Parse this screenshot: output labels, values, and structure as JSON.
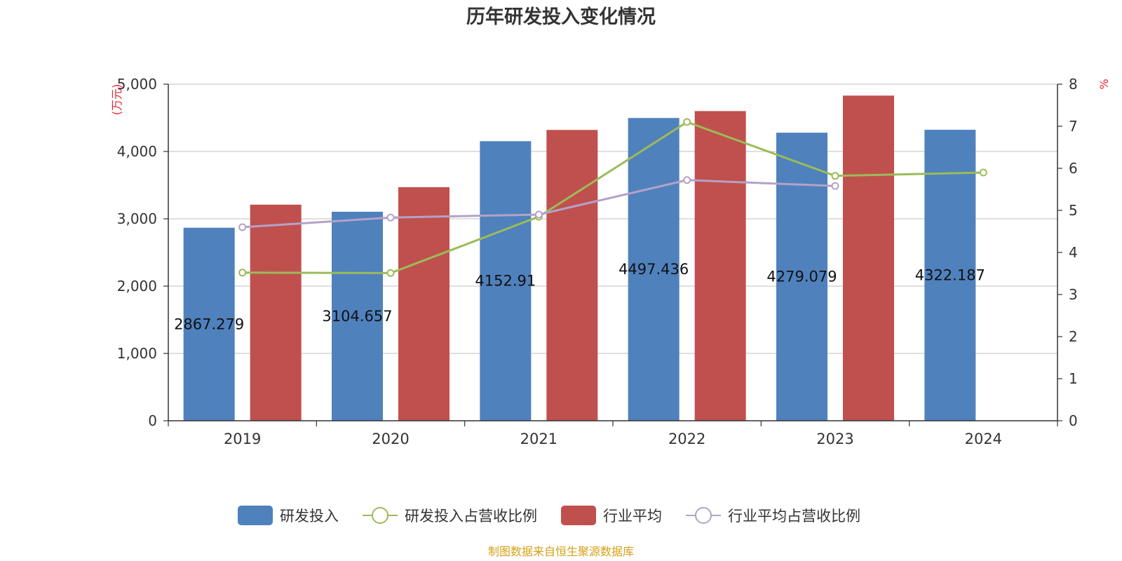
{
  "chart_data": {
    "type": "bar",
    "title": "历年研发投入变化情况",
    "categories": [
      "2019",
      "2020",
      "2021",
      "2022",
      "2023",
      "2024"
    ],
    "y_left": {
      "unit": "(万元)",
      "ylim": [
        0,
        5000
      ],
      "ticks": [
        "0",
        "1,000",
        "2,000",
        "3,000",
        "4,000",
        "5,000"
      ]
    },
    "y_right": {
      "unit": "%",
      "ylim": [
        0,
        8
      ],
      "ticks": [
        "0",
        "1",
        "2",
        "3",
        "4",
        "5",
        "6",
        "7",
        "8"
      ]
    },
    "series": [
      {
        "name": "研发投入",
        "type": "bar",
        "axis": "left",
        "color": "#4f81bd",
        "values": [
          2867.279,
          3104.657,
          4152.91,
          4497.436,
          4279.079,
          4322.187
        ],
        "labels": [
          "2867.279",
          "3104.657",
          "4152.91",
          "4497.436",
          "4279.079",
          "4322.187"
        ]
      },
      {
        "name": "研发投入占营收比例",
        "type": "line",
        "axis": "right",
        "color": "#9bbb59",
        "values": [
          3.52,
          3.51,
          4.85,
          7.1,
          5.82,
          5.9
        ]
      },
      {
        "name": "行业平均",
        "type": "bar",
        "axis": "left",
        "color": "#c0504d",
        "values": [
          3210,
          3470,
          4320,
          4600,
          4830,
          null
        ]
      },
      {
        "name": "行业平均占营收比例",
        "type": "line",
        "axis": "right",
        "color": "#b3a2c7",
        "values": [
          4.6,
          4.83,
          4.9,
          5.72,
          5.58,
          null
        ]
      }
    ],
    "grid": true,
    "legend_position": "bottom"
  },
  "footer": {
    "source": "制图数据来自恒生聚源数据库"
  }
}
